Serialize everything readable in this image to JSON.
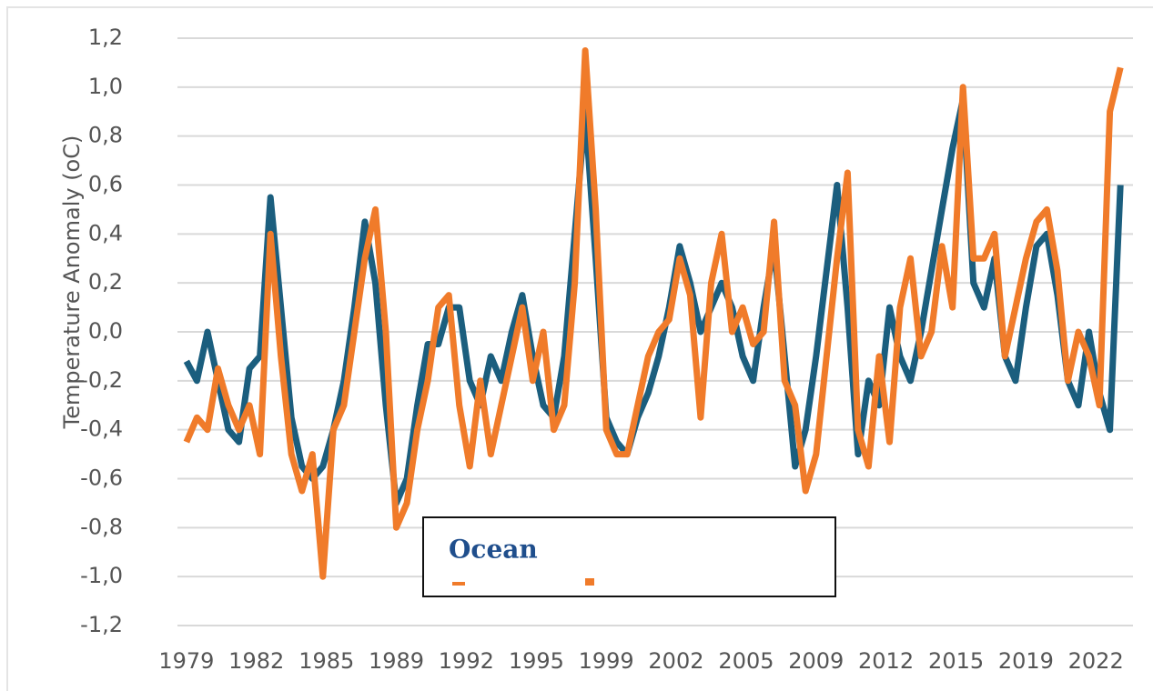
{
  "chart_data": {
    "type": "line",
    "y_label": "Temperature Anomaly (oC)",
    "legend": "bottom-center",
    "grid": true,
    "xlim": [
      1978.57,
      2024.1
    ],
    "ylim": [
      -1.2,
      1.2
    ],
    "xticks": [
      {
        "value": 1979.0,
        "label": "1979"
      },
      {
        "value": 1982.33,
        "label": "1982"
      },
      {
        "value": 1985.67,
        "label": "1985"
      },
      {
        "value": 1989.0,
        "label": "1989"
      },
      {
        "value": 1992.33,
        "label": "1992"
      },
      {
        "value": 1995.67,
        "label": "1995"
      },
      {
        "value": 1999.0,
        "label": "1999"
      },
      {
        "value": 2002.33,
        "label": "2002"
      },
      {
        "value": 2005.67,
        "label": "2005"
      },
      {
        "value": 2009.0,
        "label": "2009"
      },
      {
        "value": 2012.33,
        "label": "2012"
      },
      {
        "value": 2015.67,
        "label": "2015"
      },
      {
        "value": 2019.0,
        "label": "2019"
      },
      {
        "value": 2022.33,
        "label": "2022"
      }
    ],
    "yticks": [
      {
        "value": -1.2,
        "label": "-1,2"
      },
      {
        "value": -1.0,
        "label": "-1,0"
      },
      {
        "value": -0.8,
        "label": "-0,8"
      },
      {
        "value": -0.6,
        "label": "-0,6"
      },
      {
        "value": -0.4,
        "label": "-0,4"
      },
      {
        "value": -0.2,
        "label": "-0,2"
      },
      {
        "value": 0.0,
        "label": "0,0"
      },
      {
        "value": 0.2,
        "label": "0,2"
      },
      {
        "value": 0.4,
        "label": "0,4"
      },
      {
        "value": 0.6,
        "label": "0,6"
      },
      {
        "value": 0.8,
        "label": "0,8"
      },
      {
        "value": 1.0,
        "label": "1,0"
      },
      {
        "value": 1.2,
        "label": "1,2"
      }
    ],
    "x": [
      1979,
      1979.5,
      1980,
      1980.5,
      1981,
      1981.5,
      1982,
      1982.5,
      1983,
      1983.5,
      1984,
      1984.5,
      1985,
      1985.5,
      1986,
      1986.5,
      1987,
      1987.5,
      1988,
      1988.5,
      1989,
      1989.5,
      1990,
      1990.5,
      1991,
      1991.5,
      1992,
      1992.5,
      1993,
      1993.5,
      1994,
      1994.5,
      1995,
      1995.5,
      1996,
      1996.5,
      1997,
      1997.5,
      1998,
      1998.5,
      1999,
      1999.5,
      2000,
      2000.5,
      2001,
      2001.5,
      2002,
      2002.5,
      2003,
      2003.5,
      2004,
      2004.5,
      2005,
      2005.5,
      2006,
      2006.5,
      2007,
      2007.5,
      2008,
      2008.5,
      2009,
      2009.5,
      2010,
      2010.5,
      2011,
      2011.5,
      2012,
      2012.5,
      2013,
      2013.5,
      2014,
      2014.5,
      2015,
      2015.5,
      2016,
      2016.5,
      2017,
      2017.5,
      2018,
      2018.5,
      2019,
      2019.5,
      2020,
      2020.5,
      2021,
      2021.5,
      2022,
      2022.5,
      2023,
      2023.5
    ],
    "series": [
      {
        "name": "Ocean",
        "color": "#1b5e7e",
        "values": [
          -0.12,
          -0.2,
          0.0,
          -0.2,
          -0.4,
          -0.45,
          -0.15,
          -0.1,
          0.55,
          0.1,
          -0.35,
          -0.55,
          -0.6,
          -0.55,
          -0.4,
          -0.2,
          0.1,
          0.45,
          0.2,
          -0.3,
          -0.7,
          -0.6,
          -0.3,
          -0.05,
          -0.05,
          0.1,
          0.1,
          -0.2,
          -0.3,
          -0.1,
          -0.2,
          0.0,
          0.15,
          -0.1,
          -0.3,
          -0.35,
          -0.1,
          0.4,
          0.9,
          0.3,
          -0.35,
          -0.45,
          -0.5,
          -0.35,
          -0.25,
          -0.1,
          0.1,
          0.35,
          0.2,
          0.0,
          0.1,
          0.2,
          0.1,
          -0.1,
          -0.2,
          0.1,
          0.35,
          -0.1,
          -0.55,
          -0.4,
          -0.1,
          0.25,
          0.6,
          0.1,
          -0.5,
          -0.2,
          -0.3,
          0.1,
          -0.1,
          -0.2,
          0.0,
          0.25,
          0.5,
          0.75,
          0.95,
          0.2,
          0.1,
          0.3,
          -0.1,
          -0.2,
          0.1,
          0.35,
          0.4,
          0.15,
          -0.2,
          -0.3,
          0.0,
          -0.25,
          -0.4,
          0.6
        ]
      },
      {
        "color": "#f07b2a",
        "values": [
          -0.45,
          -0.35,
          -0.4,
          -0.15,
          -0.3,
          -0.4,
          -0.3,
          -0.5,
          0.4,
          -0.1,
          -0.5,
          -0.65,
          -0.5,
          -1.0,
          -0.4,
          -0.3,
          0.0,
          0.3,
          0.5,
          0.0,
          -0.8,
          -0.7,
          -0.4,
          -0.2,
          0.1,
          0.15,
          -0.3,
          -0.55,
          -0.2,
          -0.5,
          -0.3,
          -0.1,
          0.1,
          -0.2,
          0.0,
          -0.4,
          -0.3,
          0.2,
          1.15,
          0.5,
          -0.4,
          -0.5,
          -0.5,
          -0.3,
          -0.1,
          0.0,
          0.05,
          0.3,
          0.15,
          -0.35,
          0.2,
          0.4,
          0.0,
          0.1,
          -0.05,
          0.0,
          0.45,
          -0.2,
          -0.3,
          -0.65,
          -0.5,
          -0.1,
          0.3,
          0.65,
          -0.4,
          -0.55,
          -0.1,
          -0.45,
          0.1,
          0.3,
          -0.1,
          0.0,
          0.35,
          0.1,
          1.0,
          0.3,
          0.3,
          0.4,
          -0.1,
          0.1,
          0.3,
          0.45,
          0.5,
          0.25,
          -0.2,
          0.0,
          -0.1,
          -0.3,
          0.9,
          1.08
        ]
      }
    ]
  }
}
